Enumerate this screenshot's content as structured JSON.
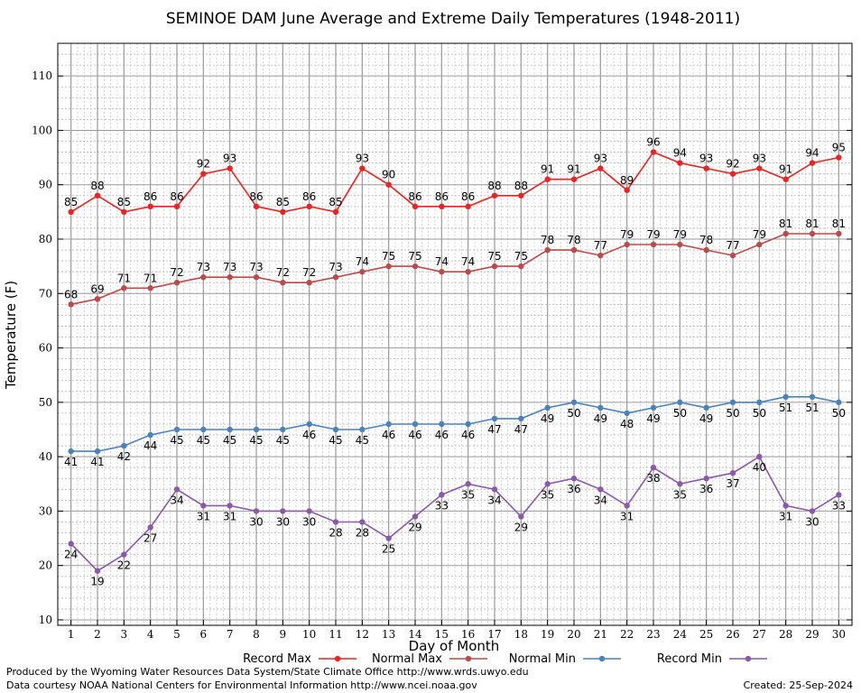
{
  "chart_data": {
    "type": "line",
    "title": "SEMINOE DAM June Average and Extreme Daily Temperatures (1948-2011)",
    "xlabel": "Day of Month",
    "ylabel": "Temperature (F)",
    "x": [
      1,
      2,
      3,
      4,
      5,
      6,
      7,
      8,
      9,
      10,
      11,
      12,
      13,
      14,
      15,
      16,
      17,
      18,
      19,
      20,
      21,
      22,
      23,
      24,
      25,
      26,
      27,
      28,
      29,
      30
    ],
    "xlim": [
      0.5,
      30.5
    ],
    "ylim": [
      9,
      116
    ],
    "yticks": [
      10,
      20,
      30,
      40,
      50,
      60,
      70,
      80,
      90,
      100,
      110
    ],
    "grid": true,
    "legend_position": "bottom",
    "series": [
      {
        "name": "Record Max",
        "color": "#ee2222",
        "label_position": "above",
        "values": [
          85,
          88,
          85,
          86,
          86,
          92,
          93,
          86,
          85,
          86,
          85,
          93,
          90,
          86,
          86,
          86,
          88,
          88,
          91,
          91,
          93,
          89,
          96,
          94,
          93,
          92,
          93,
          91,
          94,
          95
        ]
      },
      {
        "name": "Normal Max",
        "color": "#bb4a4a",
        "label_position": "above",
        "values": [
          68,
          69,
          71,
          71,
          72,
          73,
          73,
          73,
          72,
          72,
          73,
          74,
          75,
          75,
          74,
          74,
          75,
          75,
          78,
          78,
          77,
          79,
          79,
          79,
          78,
          77,
          79,
          81,
          81,
          81
        ]
      },
      {
        "name": "Normal Min",
        "color": "#4a82bb",
        "label_position": "below",
        "values": [
          41,
          41,
          42,
          44,
          45,
          45,
          45,
          45,
          45,
          46,
          45,
          45,
          46,
          46,
          46,
          46,
          47,
          47,
          49,
          50,
          49,
          48,
          49,
          50,
          49,
          50,
          50,
          51,
          51,
          50
        ]
      },
      {
        "name": "Record Min",
        "color": "#8a5aa8",
        "label_position": "below",
        "values": [
          24,
          19,
          22,
          27,
          34,
          31,
          31,
          30,
          30,
          30,
          28,
          28,
          25,
          29,
          33,
          35,
          34,
          29,
          35,
          36,
          34,
          31,
          38,
          35,
          36,
          37,
          40,
          31,
          30,
          33
        ]
      }
    ]
  },
  "footer": {
    "produced_by": "Produced by the Wyoming Water Resources Data System/State Climate Office http://www.wrds.uwyo.edu",
    "courtesy": "Data courtesy NOAA National Centers for Environmental Information http://www.ncei.noaa.gov",
    "created": "Created: 25-Sep-2024"
  }
}
